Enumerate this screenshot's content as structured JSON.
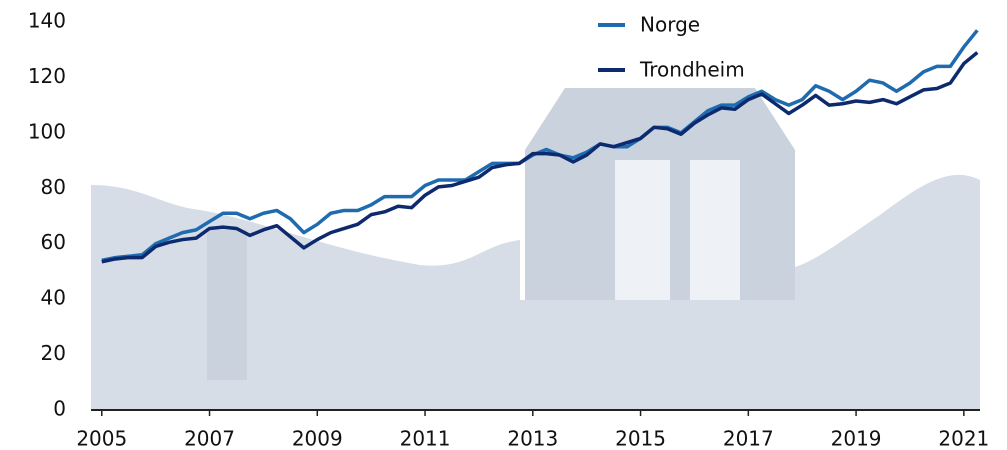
{
  "chart_data": {
    "type": "line",
    "x": [
      2005,
      2005.25,
      2005.5,
      2005.75,
      2006,
      2006.25,
      2006.5,
      2006.75,
      2007,
      2007.25,
      2007.5,
      2007.75,
      2008,
      2008.25,
      2008.5,
      2008.75,
      2009,
      2009.25,
      2009.5,
      2009.75,
      2010,
      2010.25,
      2010.5,
      2010.75,
      2011,
      2011.25,
      2011.5,
      2011.75,
      2012,
      2012.25,
      2012.5,
      2012.75,
      2013,
      2013.25,
      2013.5,
      2013.75,
      2014,
      2014.25,
      2014.5,
      2014.75,
      2015,
      2015.25,
      2015.5,
      2015.75,
      2016,
      2016.25,
      2016.5,
      2016.75,
      2017,
      2017.25,
      2017.5,
      2017.75,
      2018,
      2018.25,
      2018.5,
      2018.75,
      2019,
      2019.25,
      2019.5,
      2019.75,
      2020,
      2020.25,
      2020.5,
      2020.75,
      2021,
      2021.25
    ],
    "series": [
      {
        "name": "Norge",
        "color": "#1f6bb0",
        "values": [
          54,
          55,
          55.5,
          56,
          60,
          62,
          64,
          65,
          68,
          71,
          71,
          69,
          71,
          72,
          69,
          64,
          67,
          71,
          72,
          72,
          74,
          77,
          77,
          77,
          81,
          83,
          83,
          83,
          86,
          89,
          89,
          89,
          92,
          94,
          92,
          91,
          93,
          96,
          95,
          95,
          98,
          102,
          102,
          100,
          104,
          108,
          110,
          110,
          113,
          115,
          112,
          110,
          112,
          117,
          115,
          112,
          115,
          119,
          118,
          115,
          118,
          122,
          124,
          124,
          131,
          137
        ]
      },
      {
        "name": "Trondheim",
        "color": "#0d2a6e",
        "values": [
          53.5,
          54.5,
          55,
          55,
          59,
          60.5,
          61.5,
          62,
          65.5,
          66,
          65.5,
          63,
          65,
          66.5,
          62.5,
          58.5,
          61.5,
          64,
          65.5,
          67,
          70.5,
          71.5,
          73.5,
          73,
          77.5,
          80.5,
          81,
          82.5,
          84,
          87.5,
          88.5,
          89,
          92.5,
          92.5,
          92,
          89.5,
          92,
          96,
          95,
          96.5,
          98,
          102,
          101.5,
          99.5,
          103.5,
          106.5,
          109,
          108.5,
          112,
          114,
          110.5,
          107,
          110,
          113.5,
          110,
          110.5,
          111.5,
          111,
          112,
          110.5,
          113,
          115.5,
          116,
          118,
          125,
          129
        ]
      }
    ],
    "xlim": [
      2004.8,
      2021.3
    ],
    "xticks": [
      2005,
      2007,
      2009,
      2011,
      2013,
      2015,
      2017,
      2019,
      2021
    ],
    "ylim": [
      0,
      140
    ],
    "yticks": [
      0,
      20,
      40,
      60,
      80,
      100,
      120,
      140
    ]
  }
}
